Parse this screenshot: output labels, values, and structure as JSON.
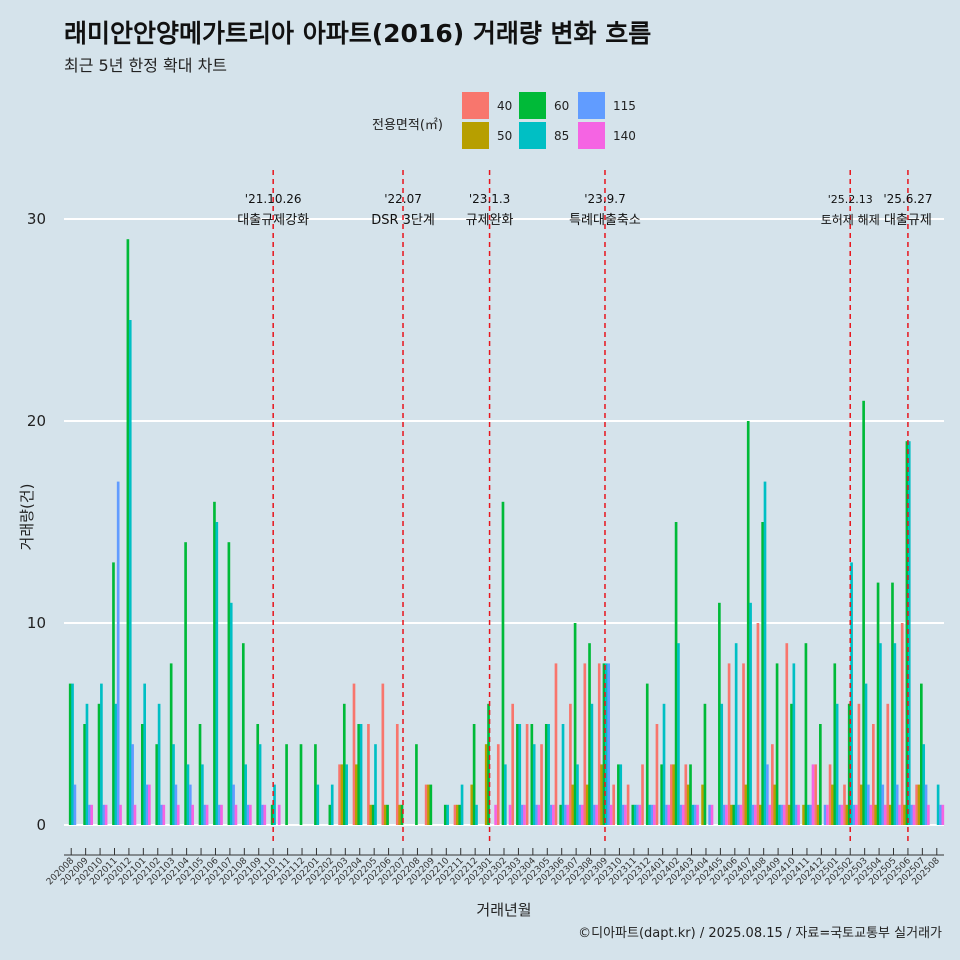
{
  "title": "래미안안양메가트리아 아파트(2016) 거래량 변화 흐름",
  "subtitle": "최근 5년 한정 확대 차트",
  "caption": "©디아파트(dapt.kr) / 2025.08.15 / 자료=국토교통부 실거래가",
  "legend": {
    "title": "전용면적(㎡)",
    "items": [
      {
        "label": "40",
        "color": "#f8766d"
      },
      {
        "label": "50",
        "color": "#b79f00"
      },
      {
        "label": "60",
        "color": "#00ba38"
      },
      {
        "label": "85",
        "color": "#00bfc4"
      },
      {
        "label": "115",
        "color": "#619cff"
      },
      {
        "label": "140",
        "color": "#f564e3"
      }
    ]
  },
  "chart_data": {
    "type": "bar",
    "xlabel": "거래년월",
    "ylabel": "거래량(건)",
    "ylim": [
      -1.5,
      31
    ],
    "yticks": [
      0,
      10,
      20,
      30
    ],
    "grid": true,
    "legend_position": "top",
    "categories": [
      "202008",
      "202009",
      "202010",
      "202011",
      "202012",
      "202101",
      "202102",
      "202103",
      "202104",
      "202105",
      "202106",
      "202107",
      "202108",
      "202109",
      "202110",
      "202111",
      "202112",
      "202201",
      "202202",
      "202203",
      "202204",
      "202205",
      "202206",
      "202207",
      "202208",
      "202209",
      "202210",
      "202211",
      "202212",
      "202301",
      "202302",
      "202303",
      "202304",
      "202305",
      "202306",
      "202307",
      "202308",
      "202309",
      "202310",
      "202311",
      "202312",
      "202401",
      "202402",
      "202403",
      "202404",
      "202405",
      "202406",
      "202407",
      "202408",
      "202409",
      "202410",
      "202411",
      "202412",
      "202501",
      "202502",
      "202503",
      "202504",
      "202505",
      "202506",
      "202507",
      "202508"
    ],
    "series": [
      {
        "name": "40",
        "color": "#f8766d",
        "values": [
          0,
          0,
          0,
          0,
          0,
          0,
          0,
          0,
          0,
          0,
          0,
          0,
          0,
          0,
          0,
          0,
          0,
          0,
          0,
          3,
          7,
          5,
          7,
          5,
          0,
          2,
          0,
          1,
          0,
          0,
          4,
          6,
          5,
          4,
          8,
          6,
          8,
          8,
          2,
          2,
          3,
          5,
          3,
          3,
          0,
          0,
          8,
          8,
          10,
          4,
          9,
          0,
          3,
          3,
          2,
          6,
          5,
          6,
          10,
          2,
          0
        ]
      },
      {
        "name": "50",
        "color": "#b79f00",
        "values": [
          0,
          0,
          0,
          0,
          0,
          0,
          0,
          0,
          0,
          0,
          0,
          0,
          0,
          0,
          0,
          0,
          0,
          0,
          0,
          3,
          3,
          1,
          1,
          1,
          0,
          2,
          0,
          1,
          2,
          4,
          0,
          0,
          0,
          0,
          0,
          2,
          2,
          3,
          0,
          0,
          0,
          0,
          3,
          2,
          2,
          0,
          1,
          2,
          1,
          2,
          1,
          1,
          1,
          2,
          1,
          2,
          1,
          1,
          1,
          2,
          0
        ]
      },
      {
        "name": "60",
        "color": "#00ba38",
        "values": [
          7,
          5,
          6,
          13,
          29,
          5,
          4,
          8,
          14,
          5,
          16,
          14,
          9,
          5,
          1,
          4,
          4,
          4,
          1,
          6,
          5,
          1,
          1,
          1,
          4,
          2,
          1,
          1,
          5,
          6,
          16,
          5,
          5,
          5,
          1,
          10,
          9,
          8,
          3,
          1,
          7,
          3,
          15,
          3,
          6,
          11,
          1,
          20,
          15,
          8,
          6,
          9,
          5,
          8,
          6,
          21,
          12,
          12,
          19,
          7,
          0
        ]
      },
      {
        "name": "85",
        "color": "#00bfc4",
        "values": [
          7,
          6,
          7,
          6,
          25,
          7,
          6,
          4,
          3,
          3,
          15,
          11,
          3,
          4,
          2,
          0,
          0,
          2,
          2,
          3,
          5,
          4,
          0,
          0,
          0,
          0,
          1,
          2,
          1,
          0,
          3,
          5,
          4,
          5,
          5,
          3,
          6,
          8,
          3,
          1,
          1,
          6,
          9,
          1,
          0,
          6,
          9,
          11,
          17,
          1,
          8,
          1,
          0,
          6,
          13,
          7,
          9,
          9,
          19,
          4,
          2
        ]
      },
      {
        "name": "115",
        "color": "#619cff",
        "values": [
          2,
          1,
          1,
          17,
          4,
          2,
          1,
          2,
          2,
          1,
          1,
          2,
          1,
          1,
          0,
          0,
          0,
          0,
          0,
          0,
          0,
          0,
          0,
          0,
          0,
          0,
          0,
          0,
          0,
          0,
          0,
          1,
          1,
          1,
          1,
          1,
          1,
          8,
          1,
          1,
          1,
          1,
          1,
          1,
          1,
          1,
          1,
          1,
          3,
          1,
          1,
          1,
          1,
          1,
          1,
          2,
          2,
          2,
          1,
          2,
          1
        ]
      },
      {
        "name": "140",
        "color": "#f564e3",
        "values": [
          0,
          1,
          1,
          1,
          1,
          2,
          1,
          1,
          1,
          1,
          1,
          1,
          1,
          1,
          1,
          0,
          0,
          0,
          0,
          0,
          0,
          0,
          0,
          0,
          0,
          0,
          0,
          0,
          0,
          1,
          1,
          1,
          1,
          1,
          1,
          1,
          1,
          1,
          1,
          1,
          1,
          1,
          1,
          1,
          1,
          1,
          1,
          1,
          1,
          1,
          1,
          3,
          1,
          1,
          1,
          1,
          1,
          1,
          1,
          1,
          1
        ]
      }
    ],
    "annotations": [
      {
        "x": "202110",
        "date": "'21.10.26",
        "label": "대출규제강화"
      },
      {
        "x": "202207",
        "date": "'22.07",
        "label": "DSR 3단계"
      },
      {
        "x": "202301",
        "date": "'23.1.3",
        "label": "규제완화"
      },
      {
        "x": "202309",
        "date": "'23.9.7",
        "label": "특례대출축소"
      },
      {
        "x": "202502",
        "date": "'25.2.13",
        "label": "토허제 해제"
      },
      {
        "x": "202506",
        "date": "'25.6.27",
        "label": "대출규제"
      }
    ]
  }
}
